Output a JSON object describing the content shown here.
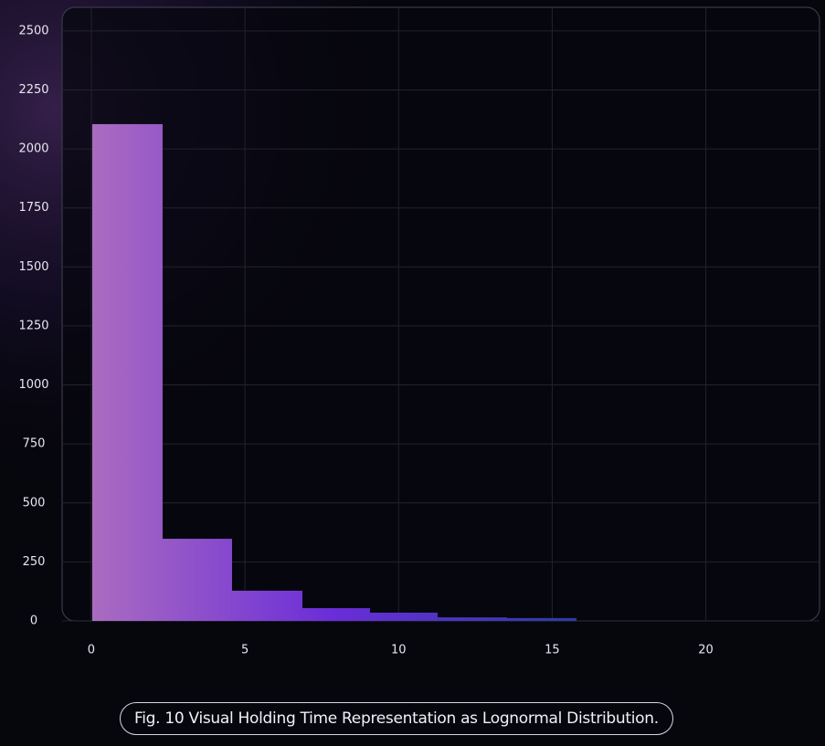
{
  "chart_data": {
    "type": "histogram",
    "bins": [
      0.03,
      2.32,
      4.58,
      6.87,
      9.07,
      11.27,
      13.53,
      15.79
    ],
    "values": [
      2105,
      348,
      128,
      54,
      35,
      15,
      12
    ],
    "colors": [
      "#aa6cc0",
      "#6a2dd8",
      "#2c3ca4"
    ],
    "xlim": [
      -0.95,
      23.7
    ],
    "xticks": [
      0,
      5,
      10,
      15,
      20
    ],
    "ylim": [
      0,
      2600
    ],
    "yticks": [
      0,
      250,
      500,
      750,
      1000,
      1250,
      1500,
      1750,
      2000,
      2250,
      2500
    ],
    "grid": true,
    "caption": "Fig. 10  Visual Holding Time Representation as Lognormal Distribution."
  }
}
